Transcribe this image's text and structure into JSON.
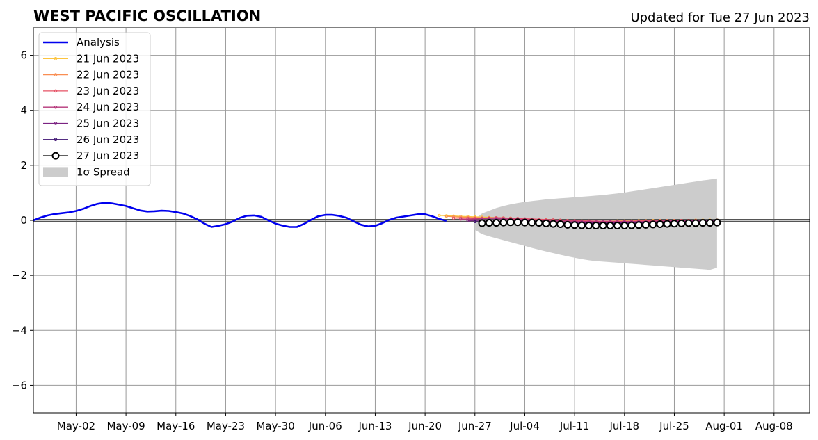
{
  "chart_data": {
    "type": "line",
    "title": "WEST PACIFIC OSCILLATION",
    "subtitle": "Updated for Tue 27 Jun 2023",
    "xlabel": "",
    "ylabel": "",
    "x_range": [
      "2023-04-26",
      "2023-08-13"
    ],
    "ylim": [
      -7,
      7
    ],
    "y_ticks": [
      -6,
      -4,
      -2,
      0,
      2,
      4,
      6
    ],
    "y_tick_labels": [
      "−6",
      "−4",
      "−2",
      "0",
      "2",
      "4",
      "6"
    ],
    "x_ticks": [
      "2023-05-02",
      "2023-05-09",
      "2023-05-16",
      "2023-05-23",
      "2023-05-30",
      "2023-06-06",
      "2023-06-13",
      "2023-06-20",
      "2023-06-27",
      "2023-07-04",
      "2023-07-11",
      "2023-07-18",
      "2023-07-25",
      "2023-08-01",
      "2023-08-08"
    ],
    "x_tick_labels": [
      "May-02",
      "May-09",
      "May-16",
      "May-23",
      "May-30",
      "Jun-06",
      "Jun-13",
      "Jun-20",
      "Jun-27",
      "Jul-04",
      "Jul-11",
      "Jul-18",
      "Jul-25",
      "Aug-01",
      "Aug-08"
    ],
    "grid": true,
    "legend_position": "top-left",
    "zero_line": true,
    "colors": {
      "analysis": "#0000ee",
      "spread": "#cccccc",
      "forecast_27": "#000000",
      "forecast_26": "#3b0f70",
      "forecast_25": "#7b2382",
      "forecast_24": "#b5367a",
      "forecast_23": "#e55064",
      "forecast_22": "#f98e52",
      "forecast_21": "#fcc43e"
    },
    "analysis": {
      "name": "Analysis",
      "start": "2023-04-26",
      "values": [
        0.0,
        0.1,
        0.18,
        0.23,
        0.26,
        0.29,
        0.34,
        0.42,
        0.52,
        0.6,
        0.64,
        0.62,
        0.57,
        0.52,
        0.44,
        0.36,
        0.32,
        0.33,
        0.35,
        0.34,
        0.3,
        0.25,
        0.16,
        0.04,
        -0.12,
        -0.24,
        -0.2,
        -0.14,
        -0.04,
        0.09,
        0.17,
        0.18,
        0.13,
        0.0,
        -0.12,
        -0.19,
        -0.24,
        -0.24,
        -0.13,
        0.02,
        0.15,
        0.2,
        0.2,
        0.16,
        0.09,
        -0.04,
        -0.16,
        -0.22,
        -0.2,
        -0.1,
        0.02,
        0.1,
        0.14,
        0.18,
        0.22,
        0.22,
        0.15,
        0.05,
        -0.02
      ]
    },
    "spread": {
      "name": "1σ Spread",
      "start": "2023-06-27",
      "upper": [
        0.05,
        0.25,
        0.35,
        0.45,
        0.52,
        0.58,
        0.63,
        0.67,
        0.7,
        0.73,
        0.76,
        0.78,
        0.8,
        0.82,
        0.84,
        0.86,
        0.88,
        0.9,
        0.92,
        0.95,
        0.98,
        1.01,
        1.05,
        1.09,
        1.13,
        1.17,
        1.21,
        1.25,
        1.29,
        1.33,
        1.37,
        1.41,
        1.45,
        1.48,
        1.52
      ],
      "lower": [
        -0.35,
        -0.5,
        -0.58,
        -0.65,
        -0.72,
        -0.79,
        -0.86,
        -0.93,
        -1.0,
        -1.07,
        -1.13,
        -1.19,
        -1.25,
        -1.31,
        -1.36,
        -1.41,
        -1.45,
        -1.48,
        -1.5,
        -1.52,
        -1.54,
        -1.56,
        -1.58,
        -1.6,
        -1.62,
        -1.64,
        -1.66,
        -1.68,
        -1.7,
        -1.72,
        -1.74,
        -1.76,
        -1.78,
        -1.8,
        -1.72
      ]
    },
    "series": [
      {
        "name": "21 Jun 2023",
        "color_key": "forecast_21",
        "start": "2023-06-22",
        "values": [
          0.18,
          0.17,
          0.16,
          0.15,
          0.14,
          0.13,
          0.12,
          0.11,
          0.1,
          0.09,
          0.08,
          0.06,
          0.05,
          0.04,
          0.03,
          0.02,
          0.01,
          0.0,
          -0.01,
          -0.02,
          -0.02,
          -0.03,
          -0.03,
          -0.03,
          -0.03,
          -0.02,
          -0.02,
          -0.02,
          -0.01,
          -0.01,
          0.0,
          0.0,
          0.0,
          0.0,
          0.0,
          0.0,
          0.01,
          0.01,
          0.01,
          0.01
        ]
      },
      {
        "name": "22 Jun 2023",
        "color_key": "forecast_22",
        "start": "2023-06-23",
        "values": [
          0.15,
          0.13,
          0.12,
          0.11,
          0.1,
          0.09,
          0.08,
          0.07,
          0.06,
          0.05,
          0.04,
          0.03,
          0.02,
          0.01,
          0.0,
          -0.01,
          -0.02,
          -0.02,
          -0.03,
          -0.03,
          -0.04,
          -0.04,
          -0.04,
          -0.04,
          -0.03,
          -0.03,
          -0.03,
          -0.02,
          -0.02,
          -0.02,
          -0.01,
          -0.01,
          -0.01,
          0.0,
          0.0,
          0.0,
          0.0,
          0.0,
          0.01
        ]
      },
      {
        "name": "23 Jun 2023",
        "color_key": "forecast_23",
        "start": "2023-06-24",
        "values": [
          0.08,
          0.08,
          0.08,
          0.07,
          0.08,
          0.09,
          0.1,
          0.09,
          0.08,
          0.07,
          0.06,
          0.05,
          0.04,
          0.03,
          0.02,
          0.01,
          0.0,
          -0.01,
          -0.02,
          -0.02,
          -0.03,
          -0.03,
          -0.03,
          -0.03,
          -0.03,
          -0.03,
          -0.02,
          -0.02,
          -0.02,
          -0.01,
          -0.01,
          -0.01,
          0.0,
          0.0,
          0.0,
          0.0,
          0.0,
          0.0
        ]
      },
      {
        "name": "24 Jun 2023",
        "color_key": "forecast_24",
        "start": "2023-06-25",
        "values": [
          0.04,
          0.04,
          0.05,
          0.06,
          0.07,
          0.07,
          0.06,
          0.05,
          0.04,
          0.03,
          0.02,
          0.01,
          0.0,
          -0.01,
          -0.02,
          -0.03,
          -0.03,
          -0.04,
          -0.04,
          -0.05,
          -0.05,
          -0.05,
          -0.05,
          -0.05,
          -0.04,
          -0.04,
          -0.04,
          -0.03,
          -0.03,
          -0.02,
          -0.02,
          -0.02,
          -0.01,
          -0.01,
          -0.01,
          0.0,
          0.0
        ]
      },
      {
        "name": "25 Jun 2023",
        "color_key": "forecast_25",
        "start": "2023-06-26",
        "values": [
          -0.02,
          -0.01,
          0.0,
          0.01,
          0.02,
          0.02,
          0.01,
          0.0,
          -0.01,
          -0.02,
          -0.03,
          -0.04,
          -0.05,
          -0.06,
          -0.07,
          -0.08,
          -0.08,
          -0.09,
          -0.09,
          -0.09,
          -0.09,
          -0.09,
          -0.08,
          -0.08,
          -0.07,
          -0.07,
          -0.06,
          -0.05,
          -0.05,
          -0.04,
          -0.04,
          -0.03,
          -0.03,
          -0.02,
          -0.02,
          -0.02
        ]
      },
      {
        "name": "26 Jun 2023",
        "color_key": "forecast_26",
        "start": "2023-06-27",
        "values": [
          -0.05,
          -0.06,
          -0.06,
          -0.05,
          -0.05,
          -0.05,
          -0.06,
          -0.06,
          -0.07,
          -0.08,
          -0.09,
          -0.1,
          -0.1,
          -0.11,
          -0.12,
          -0.12,
          -0.12,
          -0.12,
          -0.12,
          -0.12,
          -0.12,
          -0.11,
          -0.11,
          -0.1,
          -0.1,
          -0.09,
          -0.09,
          -0.08,
          -0.08,
          -0.07,
          -0.07,
          -0.07,
          -0.06,
          -0.06,
          -0.06
        ]
      },
      {
        "name": "27 Jun 2023",
        "color_key": "forecast_27",
        "marker": "open-circle",
        "start": "2023-06-28",
        "values": [
          -0.1,
          -0.09,
          -0.09,
          -0.08,
          -0.07,
          -0.07,
          -0.08,
          -0.08,
          -0.09,
          -0.11,
          -0.13,
          -0.14,
          -0.16,
          -0.17,
          -0.18,
          -0.19,
          -0.19,
          -0.19,
          -0.19,
          -0.19,
          -0.19,
          -0.18,
          -0.17,
          -0.16,
          -0.15,
          -0.14,
          -0.13,
          -0.12,
          -0.11,
          -0.1,
          -0.1,
          -0.09,
          -0.09,
          -0.08
        ]
      }
    ]
  }
}
